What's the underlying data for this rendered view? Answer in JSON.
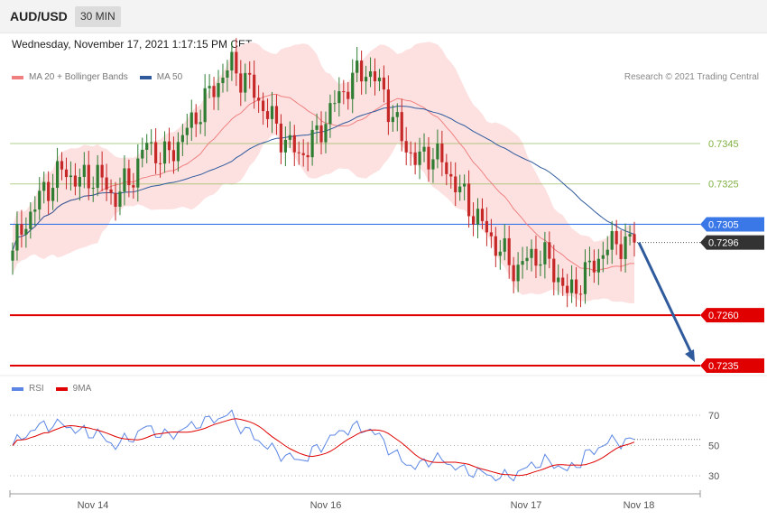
{
  "header": {
    "symbol": "AUD/USD",
    "timeframe": "30 MIN"
  },
  "timestamp": "Wednesday, November 17, 2021 1:17:15 PM CET",
  "copyright": "Research © 2021 Trading Central",
  "colors": {
    "bollinger": "#f08080",
    "ma50": "#2f5a9c",
    "green_level": "#7fb040",
    "blue_level": "#3b78e7",
    "current": "#333333",
    "red_level": "#e00000",
    "arrow": "#2f5a9c",
    "rsi": "#5b86e5",
    "rsi_ma": "#e00000"
  },
  "chart_data": [
    {
      "type": "candlestick",
      "legend": [
        {
          "name": "MA 20 + Bollinger Bands",
          "color": "#f08080"
        },
        {
          "name": "MA 50",
          "color": "#2f5a9c"
        }
      ],
      "levels": [
        {
          "value": 0.7345,
          "label": "0.7345",
          "style": "green"
        },
        {
          "value": 0.7325,
          "label": "0.7325",
          "style": "green"
        },
        {
          "value": 0.7305,
          "label": "0.7305",
          "style": "blue"
        },
        {
          "value": 0.7296,
          "label": "0.7296",
          "style": "current"
        },
        {
          "value": 0.726,
          "label": "0.7260",
          "style": "red"
        },
        {
          "value": 0.7235,
          "label": "0.7235",
          "style": "red"
        }
      ],
      "forecast_arrow": {
        "from": 0.7296,
        "to": 0.7235
      },
      "x_labels": [
        "Nov 14",
        "Nov 16",
        "Nov 17",
        "Nov 18"
      ],
      "close_path": [
        0.7292,
        0.731,
        0.7323,
        0.7332,
        0.7326,
        0.733,
        0.7318,
        0.7327,
        0.7345,
        0.7337,
        0.7347,
        0.736,
        0.7373,
        0.7384,
        0.7375,
        0.7362,
        0.7349,
        0.7339,
        0.7347,
        0.7363,
        0.7375,
        0.7382,
        0.7372,
        0.735,
        0.7336,
        0.7341,
        0.733,
        0.7316,
        0.7304,
        0.7292,
        0.7282,
        0.7291,
        0.7286,
        0.727,
        0.7279,
        0.729,
        0.7297,
        0.7294
      ],
      "close_points": 140
    },
    {
      "type": "line",
      "legend": [
        {
          "name": "RSI",
          "color": "#5b86e5"
        },
        {
          "name": "9MA",
          "color": "#e00000"
        }
      ],
      "y_ticks": [
        70,
        50,
        30
      ],
      "ylim": [
        20,
        80
      ],
      "current_rsi": 54
    }
  ]
}
